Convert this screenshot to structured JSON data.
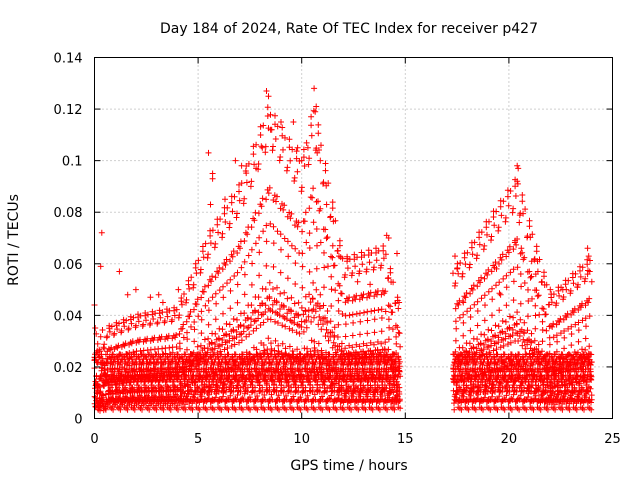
{
  "chart_data": {
    "type": "scatter",
    "title": "Day 184 of 2024, Rate Of TEC Index for receiver p427",
    "xlabel": "GPS time / hours",
    "ylabel": "ROTI / TECUs",
    "xlim": [
      0,
      25
    ],
    "ylim": [
      0,
      0.14
    ],
    "x_ticks": [
      0,
      5,
      10,
      15,
      20,
      25
    ],
    "x_tick_labels": [
      "0",
      "5",
      "10",
      "15",
      "20",
      "25"
    ],
    "y_ticks": [
      0,
      0.02,
      0.04,
      0.06,
      0.08,
      0.1,
      0.12,
      0.14
    ],
    "y_tick_labels": [
      "0",
      "0.02",
      "0.04",
      "0.06",
      "0.08",
      "0.1",
      "0.12",
      "0.14"
    ],
    "grid": true,
    "marker": "+",
    "color": "#ff0000",
    "series": [
      {
        "name": "ROTI",
        "segments": [
          {
            "start": 0.0,
            "end": 14.75,
            "description": "continuous data"
          },
          {
            "start": 17.3,
            "end": 24.0,
            "description": "continuous data"
          }
        ],
        "envelope": [
          {
            "x": 0,
            "y": 0.035
          },
          {
            "x": 2,
            "y": 0.042
          },
          {
            "x": 4,
            "y": 0.045
          },
          {
            "x": 5.5,
            "y": 0.075
          },
          {
            "x": 7,
            "y": 0.095
          },
          {
            "x": 8.4,
            "y": 0.127
          },
          {
            "x": 10,
            "y": 0.105
          },
          {
            "x": 10.6,
            "y": 0.128
          },
          {
            "x": 12,
            "y": 0.065
          },
          {
            "x": 14,
            "y": 0.07
          },
          {
            "x": 14.75,
            "y": 0.045
          },
          {
            "x": 17.3,
            "y": 0.06
          },
          {
            "x": 20.4,
            "y": 0.098
          },
          {
            "x": 22,
            "y": 0.05
          },
          {
            "x": 24,
            "y": 0.066
          }
        ],
        "points": [
          [
            0.0,
            0.044
          ],
          [
            0.35,
            0.072
          ],
          [
            0.3,
            0.059
          ],
          [
            1.2,
            0.057
          ],
          [
            1.6,
            0.048
          ],
          [
            2.0,
            0.05
          ],
          [
            2.7,
            0.047
          ],
          [
            3.1,
            0.048
          ],
          [
            3.3,
            0.045
          ],
          [
            4.05,
            0.05
          ],
          [
            5.5,
            0.103
          ],
          [
            5.7,
            0.095
          ],
          [
            5.7,
            0.093
          ],
          [
            5.6,
            0.083
          ],
          [
            6.3,
            0.085
          ],
          [
            6.8,
            0.1
          ],
          [
            7.1,
            0.098
          ],
          [
            7.3,
            0.096
          ],
          [
            7.8,
            0.097
          ],
          [
            8.1,
            0.105
          ],
          [
            8.3,
            0.127
          ],
          [
            8.4,
            0.125
          ],
          [
            8.5,
            0.112
          ],
          [
            8.55,
            0.112
          ],
          [
            9.0,
            0.115
          ],
          [
            9.6,
            0.115
          ],
          [
            9.8,
            0.105
          ],
          [
            10.0,
            0.1
          ],
          [
            10.3,
            0.105
          ],
          [
            10.6,
            0.128
          ],
          [
            10.7,
            0.121
          ],
          [
            10.65,
            0.119
          ],
          [
            10.75,
            0.103
          ],
          [
            10.9,
            0.1
          ],
          [
            11.2,
            0.083
          ],
          [
            11.5,
            0.067
          ],
          [
            11.8,
            0.063
          ],
          [
            12.2,
            0.062
          ],
          [
            12.7,
            0.053
          ],
          [
            13.3,
            0.052
          ],
          [
            14.1,
            0.071
          ],
          [
            14.2,
            0.07
          ],
          [
            14.6,
            0.064
          ],
          [
            14.7,
            0.045
          ],
          [
            17.4,
            0.063
          ],
          [
            17.5,
            0.058
          ],
          [
            17.8,
            0.045
          ],
          [
            19.4,
            0.058
          ],
          [
            19.6,
            0.048
          ],
          [
            20.3,
            0.069
          ],
          [
            20.4,
            0.098
          ],
          [
            20.45,
            0.097
          ],
          [
            20.4,
            0.092
          ],
          [
            20.5,
            0.076
          ],
          [
            20.6,
            0.066
          ],
          [
            21.1,
            0.061
          ],
          [
            21.4,
            0.057
          ],
          [
            21.3,
            0.056
          ],
          [
            22.0,
            0.05
          ],
          [
            22.6,
            0.05
          ],
          [
            23.3,
            0.051
          ],
          [
            23.8,
            0.066
          ],
          [
            23.85,
            0.063
          ],
          [
            23.9,
            0.057
          ],
          [
            23.8,
            0.056
          ],
          [
            24.0,
            0.053
          ]
        ]
      }
    ]
  }
}
